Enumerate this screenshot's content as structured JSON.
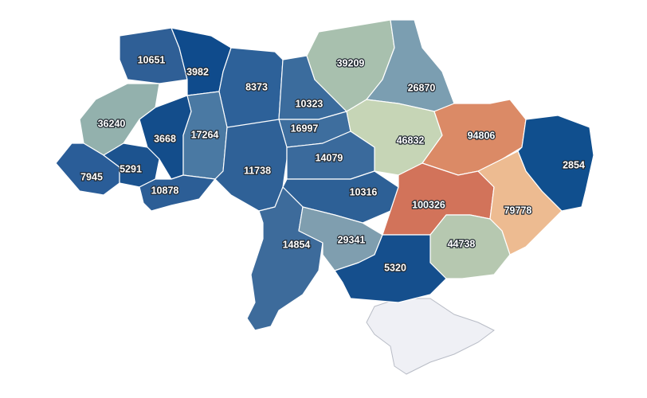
{
  "regions": [
    {
      "value": 10651,
      "color": "#2f5f96"
    },
    {
      "value": 3982,
      "color": "#0f4b8c"
    },
    {
      "value": 8373,
      "color": "#2d6199"
    },
    {
      "value": 10323,
      "color": "#3b6c9d"
    },
    {
      "value": 39209,
      "color": "#a8c0ae"
    },
    {
      "value": 26870,
      "color": "#7b9eb1"
    },
    {
      "value": 36240,
      "color": "#93b1ad"
    },
    {
      "value": 3668,
      "color": "#134d8b"
    },
    {
      "value": 17264,
      "color": "#4a79a3"
    },
    {
      "value": 16997,
      "color": "#3e6e9e"
    },
    {
      "value": 46832,
      "color": "#c6d5b6"
    },
    {
      "value": 94806,
      "color": "#db8a66"
    },
    {
      "value": 2854,
      "color": "#104f8e"
    },
    {
      "value": 7945,
      "color": "#2a5d98"
    },
    {
      "value": 5291,
      "color": "#1c538f"
    },
    {
      "value": 10878,
      "color": "#2c5e96"
    },
    {
      "value": 11738,
      "color": "#2f6197"
    },
    {
      "value": 14079,
      "color": "#3a6a9c"
    },
    {
      "value": 10316,
      "color": "#2d6096"
    },
    {
      "value": 100326,
      "color": "#d2735a"
    },
    {
      "value": 79778,
      "color": "#edbb91"
    },
    {
      "value": 14854,
      "color": "#3d6b9b"
    },
    {
      "value": 29341,
      "color": "#7f9eaf"
    },
    {
      "value": 44738,
      "color": "#b6c8b0"
    },
    {
      "value": 5320,
      "color": "#154f8d"
    }
  ]
}
